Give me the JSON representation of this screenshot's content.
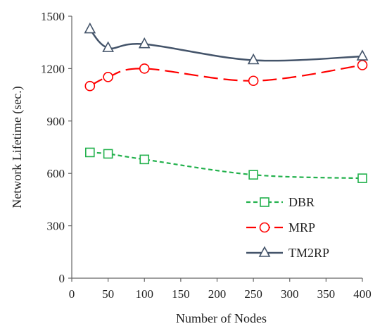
{
  "chart_data": {
    "type": "line",
    "xlabel": "Number of Nodes",
    "ylabel": "Network Lifetime (sec.)",
    "xlim": [
      0,
      400
    ],
    "ylim": [
      0,
      1500
    ],
    "xticks": [
      "0",
      "50",
      "100",
      "150",
      "200",
      "250",
      "300",
      "350",
      "400"
    ],
    "yticks": [
      "0",
      "300",
      "600",
      "900",
      "1200",
      "1500"
    ],
    "grid": false,
    "legend_position": "bottom-right",
    "series": [
      {
        "name": "DBR",
        "x": [
          25,
          50,
          100,
          250,
          400
        ],
        "values": [
          720,
          712,
          680,
          592,
          572
        ],
        "color": "#22b14c",
        "dash": "dashed",
        "marker": "square"
      },
      {
        "name": "MRP",
        "x": [
          25,
          50,
          100,
          250,
          400
        ],
        "values": [
          1100,
          1152,
          1200,
          1130,
          1220
        ],
        "color": "#ff0000",
        "dash": "long-dash",
        "marker": "circle"
      },
      {
        "name": "TM2RP",
        "x": [
          25,
          50,
          100,
          250,
          400
        ],
        "values": [
          1425,
          1318,
          1340,
          1248,
          1270
        ],
        "color": "#44546a",
        "dash": "solid",
        "marker": "triangle"
      }
    ]
  }
}
